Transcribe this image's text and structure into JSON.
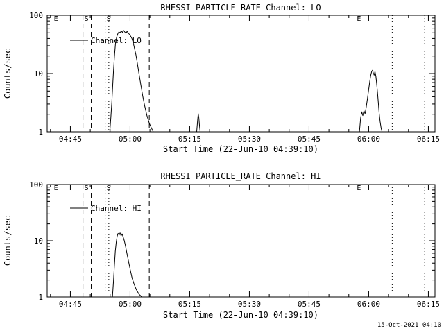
{
  "page": {
    "background": "#ffffff",
    "foreground": "#000000",
    "timestamp": "15-Oct-2021 04:10"
  },
  "chart_data": [
    {
      "type": "line",
      "title": "RHESSI PARTICLE_RATE Channel: LO",
      "xlabel": "Start Time (22-Jun-10 04:39:10)",
      "ylabel": "Counts/sec",
      "legend": "Channel: LO",
      "yscale": "log",
      "ylim": [
        1,
        100
      ],
      "yticks": [
        {
          "v": 1,
          "label": "1"
        },
        {
          "v": 10,
          "label": "10"
        },
        {
          "v": 100,
          "label": "100"
        }
      ],
      "x_unit": "seconds after start time 04:39:10",
      "xlim": [
        0,
        5850
      ],
      "x_minor_step": 300,
      "xticks": [
        {
          "t": 350,
          "label": "04:45"
        },
        {
          "t": 1250,
          "label": "05:00"
        },
        {
          "t": 2150,
          "label": "05:15"
        },
        {
          "t": 3050,
          "label": "05:30"
        },
        {
          "t": 3950,
          "label": "05:45"
        },
        {
          "t": 4850,
          "label": "06:00"
        },
        {
          "t": 5750,
          "label": "06:15"
        }
      ],
      "grid": false,
      "line_color": "#000000",
      "series": [
        {
          "name": "Channel: LO",
          "segments": [
            [
              [
                945,
                1
              ],
              [
                960,
                1.7
              ],
              [
                975,
                3.2
              ],
              [
                988,
                6
              ],
              [
                1000,
                11
              ],
              [
                1015,
                20
              ],
              [
                1030,
                32
              ],
              [
                1048,
                42
              ],
              [
                1065,
                48
              ],
              [
                1082,
                52
              ],
              [
                1100,
                50
              ],
              [
                1118,
                54
              ],
              [
                1135,
                51
              ],
              [
                1152,
                55
              ],
              [
                1170,
                52
              ],
              [
                1188,
                49
              ],
              [
                1205,
                53
              ],
              [
                1222,
                50
              ],
              [
                1240,
                47
              ],
              [
                1258,
                44
              ],
              [
                1278,
                40
              ],
              [
                1298,
                34
              ],
              [
                1318,
                27
              ],
              [
                1338,
                21
              ],
              [
                1360,
                15
              ],
              [
                1385,
                10
              ],
              [
                1412,
                6.5
              ],
              [
                1440,
                4.2
              ],
              [
                1470,
                2.8
              ],
              [
                1505,
                1.9
              ],
              [
                1540,
                1.4
              ],
              [
                1575,
                1.15
              ],
              [
                1600,
                1
              ]
            ],
            [
              [
                2255,
                1
              ],
              [
                2268,
                1.5
              ],
              [
                2278,
                2.05
              ],
              [
                2288,
                1.75
              ],
              [
                2298,
                1.25
              ],
              [
                2308,
                1
              ]
            ],
            [
              [
                4710,
                1
              ],
              [
                4728,
                1.7
              ],
              [
                4745,
                2.2
              ],
              [
                4762,
                1.9
              ],
              [
                4778,
                2.3
              ],
              [
                4795,
                2.05
              ],
              [
                4812,
                2.6
              ],
              [
                4830,
                3.6
              ],
              [
                4848,
                5.2
              ],
              [
                4865,
                7.2
              ],
              [
                4880,
                9.2
              ],
              [
                4895,
                10.8
              ],
              [
                4908,
                11.4
              ],
              [
                4920,
                10.2
              ],
              [
                4932,
                9.4
              ],
              [
                4945,
                10.9
              ],
              [
                4958,
                9
              ],
              [
                4970,
                6.8
              ],
              [
                4982,
                4.8
              ],
              [
                4995,
                3.2
              ],
              [
                5008,
                2.1
              ],
              [
                5022,
                1.5
              ],
              [
                5038,
                1.15
              ],
              [
                5052,
                1
              ]
            ]
          ]
        }
      ],
      "events": [
        {
          "t": 80,
          "letter": "E",
          "line": "none"
        },
        {
          "t": 540,
          "letter": "S",
          "line": "dashed"
        },
        {
          "t": 665,
          "letter": "",
          "line": "dashed"
        },
        {
          "t": 875,
          "letter": "S",
          "line": "dotted"
        },
        {
          "t": 930,
          "letter": "",
          "line": "dotted"
        },
        {
          "t": 1540,
          "letter": "",
          "line": "dashed"
        },
        {
          "t": 4650,
          "letter": "E",
          "line": "none"
        },
        {
          "t": 5205,
          "letter": "",
          "line": "dotted"
        },
        {
          "t": 5695,
          "letter": "",
          "line": "dotted"
        }
      ]
    },
    {
      "type": "line",
      "title": "RHESSI PARTICLE_RATE Channel: HI",
      "xlabel": "Start Time (22-Jun-10 04:39:10)",
      "ylabel": "Counts/sec",
      "legend": "Channel: HI",
      "yscale": "log",
      "ylim": [
        1,
        100
      ],
      "yticks": [
        {
          "v": 1,
          "label": "1"
        },
        {
          "v": 10,
          "label": "10"
        },
        {
          "v": 100,
          "label": "100"
        }
      ],
      "x_unit": "seconds after start time 04:39:10",
      "xlim": [
        0,
        5850
      ],
      "x_minor_step": 300,
      "xticks": [
        {
          "t": 350,
          "label": "04:45"
        },
        {
          "t": 1250,
          "label": "05:00"
        },
        {
          "t": 2150,
          "label": "05:15"
        },
        {
          "t": 3050,
          "label": "05:30"
        },
        {
          "t": 3950,
          "label": "05:45"
        },
        {
          "t": 4850,
          "label": "06:00"
        },
        {
          "t": 5750,
          "label": "06:15"
        }
      ],
      "grid": false,
      "line_color": "#000000",
      "series": [
        {
          "name": "Channel: HI",
          "segments": [
            [
              [
                985,
                1
              ],
              [
                1000,
                1.9
              ],
              [
                1014,
                3.6
              ],
              [
                1028,
                6.5
              ],
              [
                1042,
                9.5
              ],
              [
                1056,
                12
              ],
              [
                1070,
                13.5
              ],
              [
                1085,
                12.6
              ],
              [
                1100,
                13.8
              ],
              [
                1115,
                12.2
              ],
              [
                1130,
                13.2
              ],
              [
                1145,
                11.8
              ],
              [
                1162,
                10.2
              ],
              [
                1180,
                8.2
              ],
              [
                1200,
                6.2
              ],
              [
                1225,
                4.4
              ],
              [
                1252,
                3.1
              ],
              [
                1280,
                2.2
              ],
              [
                1310,
                1.7
              ],
              [
                1345,
                1.35
              ],
              [
                1385,
                1.12
              ],
              [
                1430,
                1
              ]
            ]
          ]
        }
      ],
      "events": [
        {
          "t": 80,
          "letter": "E",
          "line": "none"
        },
        {
          "t": 540,
          "letter": "S",
          "line": "dashed"
        },
        {
          "t": 665,
          "letter": "",
          "line": "dashed"
        },
        {
          "t": 875,
          "letter": "S",
          "line": "dotted"
        },
        {
          "t": 930,
          "letter": "",
          "line": "dotted"
        },
        {
          "t": 1540,
          "letter": "",
          "line": "dashed"
        },
        {
          "t": 4650,
          "letter": "E",
          "line": "none"
        },
        {
          "t": 5205,
          "letter": "",
          "line": "dotted"
        },
        {
          "t": 5695,
          "letter": "",
          "line": "dotted"
        }
      ]
    }
  ]
}
